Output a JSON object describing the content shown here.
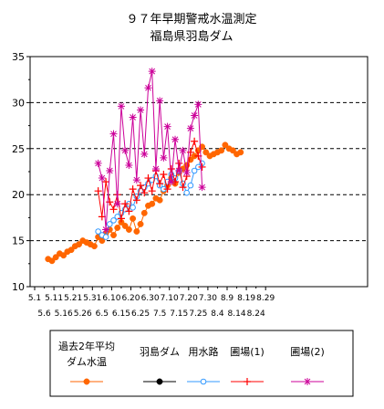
{
  "chart_data": {
    "type": "line",
    "title": "９７年早期警戒水温測定",
    "subtitle": "福島県羽島ダム",
    "xlabel": "",
    "ylabel": "",
    "ylim": [
      10,
      35
    ],
    "yticks": [
      10,
      15,
      20,
      25,
      30,
      35
    ],
    "grid": "horizontal dashed",
    "legend_position": "bottom",
    "xticks_top": [
      "5.1",
      "5.11",
      "5.21",
      "5.31",
      "6.10",
      "6.20",
      "6.30",
      "7.10",
      "7.20",
      "7.30",
      "8.9",
      "8.19",
      "8.29"
    ],
    "xticks_bottom": [
      "5.6",
      "5.16",
      "5.26",
      "6.5",
      "6.15",
      "6.25",
      "7.5",
      "7.15",
      "7.25",
      "8.4",
      "8.14",
      "8.24"
    ],
    "series": [
      {
        "name": "過去2年平均\nダム水温",
        "color": "#ff6600",
        "marker": "circle-filled",
        "x": [
          "5.8",
          "5.10",
          "5.12",
          "5.14",
          "5.16",
          "5.18",
          "5.20",
          "5.22",
          "5.24",
          "5.26",
          "5.28",
          "5.30",
          "6.1",
          "6.3",
          "6.5",
          "6.7",
          "6.9",
          "6.11",
          "6.13",
          "6.15",
          "6.17",
          "6.19",
          "6.21",
          "6.23",
          "6.25",
          "6.27",
          "6.29",
          "7.1",
          "7.3",
          "7.5",
          "7.7",
          "7.9",
          "7.11",
          "7.13",
          "7.15",
          "7.17",
          "7.19",
          "7.21",
          "7.23",
          "7.25",
          "7.27",
          "7.29",
          "7.31",
          "8.2",
          "8.4",
          "8.6",
          "8.8",
          "8.10",
          "8.12",
          "8.14",
          "8.16"
        ],
        "y": [
          13.0,
          12.8,
          13.2,
          13.6,
          13.4,
          13.8,
          14.0,
          14.4,
          14.6,
          15.0,
          14.8,
          14.6,
          14.4,
          15.4,
          15.0,
          15.8,
          16.2,
          15.6,
          16.4,
          17.0,
          16.6,
          16.2,
          17.4,
          16.0,
          16.8,
          18.0,
          18.8,
          19.0,
          19.6,
          19.4,
          20.4,
          21.0,
          21.8,
          21.2,
          22.4,
          22.8,
          23.2,
          23.8,
          24.2,
          24.8,
          25.2,
          24.6,
          24.2,
          24.4,
          24.6,
          24.8,
          25.4,
          25.0,
          24.8,
          24.4,
          24.6
        ]
      },
      {
        "name": "羽島ダム",
        "color": "#000000",
        "marker": "circle-filled",
        "x": [],
        "y": []
      },
      {
        "name": "用水路",
        "color": "#3399ff",
        "marker": "circle-open",
        "x": [
          "6.3",
          "6.5",
          "6.7",
          "6.9",
          "6.11",
          "6.13",
          "6.15",
          "6.17",
          "6.19",
          "6.21",
          "6.23",
          "6.25",
          "6.27",
          "6.29",
          "7.1",
          "7.3",
          "7.5",
          "7.7",
          "7.9",
          "7.11",
          "7.13",
          "7.15",
          "7.17",
          "7.19",
          "7.21",
          "7.23",
          "7.25",
          "7.27"
        ],
        "y": [
          16.0,
          15.6,
          15.4,
          16.8,
          17.2,
          17.6,
          18.0,
          18.4,
          19.0,
          18.6,
          19.8,
          20.4,
          20.8,
          21.2,
          21.6,
          22.0,
          21.0,
          20.6,
          21.4,
          22.2,
          21.8,
          22.6,
          21.2,
          20.2,
          21.0,
          22.6,
          23.0,
          23.4
        ]
      },
      {
        "name": "圃場(1)",
        "color": "#ff0000",
        "marker": "plus",
        "x": [
          "6.3",
          "6.5",
          "6.7",
          "6.9",
          "6.11",
          "6.13",
          "6.15",
          "6.17",
          "6.19",
          "6.21",
          "6.23",
          "6.25",
          "6.27",
          "6.29",
          "7.1",
          "7.3",
          "7.5",
          "7.7",
          "7.9",
          "7.11",
          "7.13",
          "7.15",
          "7.17",
          "7.19",
          "7.21",
          "7.23",
          "7.25",
          "7.27"
        ],
        "y": [
          20.4,
          17.6,
          21.4,
          19.2,
          18.4,
          20.0,
          17.4,
          19.0,
          18.2,
          20.6,
          19.4,
          21.0,
          20.2,
          21.8,
          20.4,
          22.6,
          21.2,
          22.2,
          20.6,
          22.8,
          21.4,
          23.4,
          20.8,
          22.0,
          24.6,
          25.8,
          24.2,
          23.0
        ]
      },
      {
        "name": "圃場(2)",
        "color": "#cc0099",
        "marker": "star",
        "x": [
          "6.3",
          "6.5",
          "6.7",
          "6.9",
          "6.11",
          "6.13",
          "6.15",
          "6.17",
          "6.19",
          "6.21",
          "6.23",
          "6.25",
          "6.27",
          "6.29",
          "7.1",
          "7.3",
          "7.5",
          "7.7",
          "7.9",
          "7.11",
          "7.13",
          "7.15",
          "7.17",
          "7.19",
          "7.21",
          "7.23",
          "7.25",
          "7.27"
        ],
        "y": [
          23.4,
          21.8,
          16.2,
          22.6,
          26.6,
          19.0,
          29.6,
          24.8,
          23.2,
          28.4,
          21.6,
          29.2,
          24.4,
          31.6,
          33.4,
          22.8,
          30.2,
          24.0,
          27.4,
          21.4,
          26.0,
          22.6,
          24.8,
          22.4,
          27.2,
          28.6,
          29.8,
          20.8
        ]
      }
    ]
  }
}
